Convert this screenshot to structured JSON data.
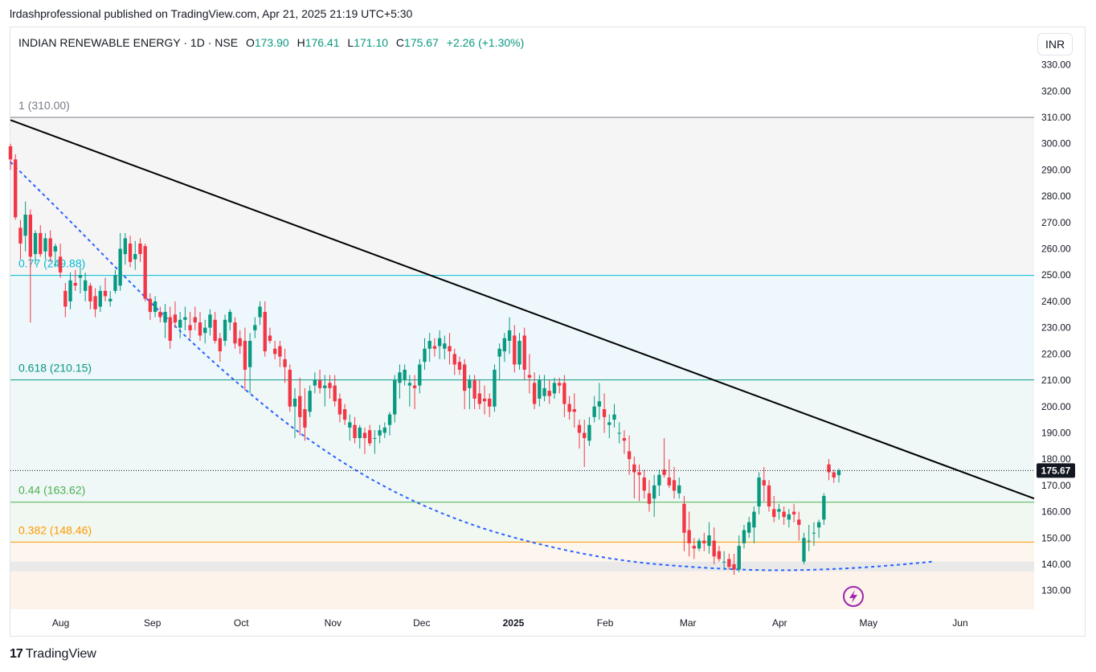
{
  "header": {
    "published_text": "lrdashprofessional published on TradingView.com, Apr 21, 2025 21:19 UTC+5:30"
  },
  "legend": {
    "symbol": "INDIAN RENEWABLE ENERGY · 1D · NSE",
    "open_label": "O",
    "open": "173.90",
    "high_label": "H",
    "high": "176.41",
    "low_label": "L",
    "low": "171.10",
    "close_label": "C",
    "close": "175.67",
    "change": "+2.26 (+1.30%)"
  },
  "currency_button": "INR",
  "last_price_label": "175.67",
  "footer": {
    "brand": "TradingView",
    "logo_text": "17"
  },
  "colors": {
    "up": "#089981",
    "down": "#f23645",
    "trendline": "#000000",
    "curve": "#2962ff",
    "fib_0_77": "#00bcd4",
    "fib_0_618": "#089981",
    "fib_0_44": "#4caf50",
    "fib_0_382": "#ff9800",
    "fib_1": "#787b86"
  },
  "chart_data": {
    "type": "candlestick",
    "title": "INDIAN RENEWABLE ENERGY · 1D · NSE",
    "y_range": [
      122,
      335
    ],
    "y_ticks": [
      "330.00",
      "320.00",
      "310.00",
      "300.00",
      "290.00",
      "280.00",
      "270.00",
      "260.00",
      "250.00",
      "240.00",
      "230.00",
      "220.00",
      "210.00",
      "200.00",
      "190.00",
      "180.00",
      "170.00",
      "160.00",
      "150.00",
      "140.00",
      "130.00"
    ],
    "x_ticks": [
      "Aug",
      "Sep",
      "Oct",
      "Nov",
      "Dec",
      "2025",
      "Feb",
      "Mar",
      "Apr",
      "May",
      "Jun"
    ],
    "x_range": [
      "2024-07-15",
      "2025-06-26"
    ],
    "fib_levels": [
      {
        "ratio": "1",
        "price": 310.0,
        "label": "1 (310.00)"
      },
      {
        "ratio": "0.77",
        "price": 249.88,
        "label": "0.77 (249.88)"
      },
      {
        "ratio": "0.618",
        "price": 210.15,
        "label": "0.618 (210.15)"
      },
      {
        "ratio": "0.44",
        "price": 163.62,
        "label": "0.44 (163.62)"
      },
      {
        "ratio": "0.382",
        "price": 148.46,
        "label": "0.382 (148.46)"
      },
      {
        "ratio": "0",
        "price": 137.3,
        "label": ""
      }
    ],
    "trendline": {
      "from": {
        "date": "2024-07-15",
        "price": 309
      },
      "to": {
        "date": "2025-06-26",
        "price": 165
      }
    },
    "curve": [
      [
        0.0,
        293
      ],
      [
        0.06,
        270
      ],
      [
        0.13,
        242
      ],
      [
        0.2,
        216
      ],
      [
        0.28,
        190
      ],
      [
        0.36,
        170
      ],
      [
        0.44,
        156
      ],
      [
        0.52,
        147
      ],
      [
        0.6,
        141
      ],
      [
        0.68,
        138.5
      ],
      [
        0.74,
        137.6
      ],
      [
        0.8,
        138
      ],
      [
        0.86,
        139.5
      ],
      [
        0.9,
        141
      ]
    ],
    "candles": [
      [
        0,
        299,
        300,
        290,
        294
      ],
      [
        1,
        294,
        296,
        271,
        272
      ],
      [
        2,
        268,
        271,
        256,
        262
      ],
      [
        3,
        265,
        278,
        259,
        273
      ],
      [
        4,
        273,
        275,
        232,
        257
      ],
      [
        5,
        258,
        267,
        254,
        266
      ],
      [
        6,
        266,
        269,
        257,
        258
      ],
      [
        7,
        259,
        266,
        256,
        264
      ],
      [
        8,
        264,
        267,
        255,
        257
      ],
      [
        9,
        259,
        262,
        253,
        261
      ],
      [
        10,
        257,
        262,
        249,
        251
      ],
      [
        11,
        244,
        247,
        234,
        238
      ],
      [
        12,
        240,
        251,
        237,
        248
      ],
      [
        13,
        247,
        252,
        244,
        246
      ],
      [
        14,
        249,
        253,
        243,
        250
      ],
      [
        15,
        244,
        251,
        240,
        248
      ],
      [
        16,
        246,
        247,
        237,
        240
      ],
      [
        17,
        242,
        245,
        234,
        237
      ],
      [
        18,
        238,
        246,
        236,
        244
      ],
      [
        19,
        244,
        249,
        240,
        242
      ],
      [
        20,
        240,
        244,
        238,
        241
      ],
      [
        21,
        244,
        252,
        243,
        250
      ],
      [
        22,
        246,
        266,
        244,
        260
      ],
      [
        23,
        258,
        266,
        254,
        264
      ],
      [
        24,
        262,
        265,
        253,
        255
      ],
      [
        25,
        256,
        263,
        252,
        258
      ],
      [
        26,
        262,
        264,
        255,
        258
      ],
      [
        27,
        261,
        262,
        240,
        241
      ],
      [
        28,
        241,
        243,
        233,
        236
      ],
      [
        29,
        236,
        242,
        234,
        240
      ],
      [
        30,
        236,
        238,
        232,
        234
      ],
      [
        31,
        232,
        239,
        226,
        236
      ],
      [
        32,
        234,
        238,
        222,
        225
      ],
      [
        33,
        235,
        240,
        230,
        232
      ],
      [
        34,
        230,
        236,
        226,
        233
      ],
      [
        35,
        233,
        238,
        229,
        234
      ],
      [
        36,
        231,
        236,
        226,
        229
      ],
      [
        37,
        234,
        238,
        229,
        232
      ],
      [
        38,
        232,
        236,
        225,
        227
      ],
      [
        39,
        228,
        233,
        224,
        230
      ],
      [
        40,
        230,
        237,
        227,
        235
      ],
      [
        41,
        233,
        236,
        224,
        225
      ],
      [
        42,
        226,
        228,
        217,
        221
      ],
      [
        43,
        225,
        235,
        223,
        233
      ],
      [
        44,
        232,
        237,
        229,
        236
      ],
      [
        45,
        232,
        234,
        222,
        224
      ],
      [
        46,
        226,
        229,
        220,
        223
      ],
      [
        47,
        225,
        230,
        206,
        214
      ],
      [
        48,
        215,
        228,
        205,
        225
      ],
      [
        49,
        229,
        234,
        226,
        231
      ],
      [
        50,
        234,
        240,
        231,
        238
      ],
      [
        51,
        236,
        240,
        219,
        221
      ],
      [
        52,
        227,
        230,
        224,
        225
      ],
      [
        53,
        222,
        225,
        218,
        220
      ],
      [
        54,
        223,
        225,
        215,
        219
      ],
      [
        55,
        218,
        222,
        209,
        215
      ],
      [
        56,
        214,
        216,
        198,
        200
      ],
      [
        57,
        200,
        207,
        188,
        203
      ],
      [
        58,
        204,
        211,
        189,
        196
      ],
      [
        59,
        199,
        207,
        187,
        192
      ],
      [
        60,
        198,
        208,
        196,
        206
      ],
      [
        61,
        208,
        213,
        205,
        210
      ],
      [
        62,
        210,
        214,
        205,
        207
      ],
      [
        63,
        207,
        212,
        200,
        208
      ],
      [
        64,
        209,
        212,
        203,
        207
      ],
      [
        65,
        208,
        212,
        200,
        202
      ],
      [
        66,
        203,
        205,
        194,
        197
      ],
      [
        67,
        199,
        201,
        193,
        195
      ],
      [
        68,
        192,
        197,
        187,
        194
      ],
      [
        69,
        193,
        196,
        186,
        188
      ],
      [
        70,
        188,
        193,
        184,
        192
      ],
      [
        71,
        190,
        192,
        182,
        188
      ],
      [
        72,
        191,
        193,
        185,
        186
      ],
      [
        73,
        188,
        191,
        182,
        188
      ],
      [
        74,
        189,
        193,
        186,
        191
      ],
      [
        75,
        190,
        194,
        188,
        192
      ],
      [
        76,
        193,
        198,
        189,
        197
      ],
      [
        77,
        197,
        212,
        194,
        210
      ],
      [
        78,
        209,
        216,
        203,
        213
      ],
      [
        79,
        210,
        216,
        208,
        214
      ],
      [
        80,
        208,
        212,
        200,
        209
      ],
      [
        81,
        208,
        212,
        199,
        207
      ],
      [
        82,
        208,
        218,
        205,
        216
      ],
      [
        83,
        217,
        226,
        214,
        222
      ],
      [
        84,
        222,
        228,
        217,
        225
      ],
      [
        85,
        223,
        226,
        219,
        222
      ],
      [
        86,
        223,
        229,
        218,
        226
      ],
      [
        87,
        222,
        227,
        218,
        224
      ],
      [
        88,
        223,
        228,
        216,
        221
      ],
      [
        89,
        220,
        222,
        212,
        216
      ],
      [
        90,
        217,
        219,
        212,
        214
      ],
      [
        91,
        216,
        218,
        199,
        206
      ],
      [
        92,
        207,
        212,
        199,
        210
      ],
      [
        93,
        210,
        212,
        199,
        203
      ],
      [
        94,
        205,
        210,
        199,
        201
      ],
      [
        95,
        203,
        208,
        197,
        202
      ],
      [
        96,
        203,
        205,
        196,
        200
      ],
      [
        97,
        200,
        216,
        198,
        214
      ],
      [
        98,
        219,
        224,
        210,
        222
      ],
      [
        99,
        221,
        228,
        217,
        226
      ],
      [
        100,
        225,
        234,
        220,
        229
      ],
      [
        101,
        227,
        231,
        213,
        216
      ],
      [
        102,
        216,
        228,
        214,
        225
      ],
      [
        103,
        227,
        230,
        210,
        214
      ],
      [
        104,
        212,
        220,
        205,
        211
      ],
      [
        105,
        209,
        213,
        199,
        201
      ],
      [
        106,
        203,
        212,
        200,
        210
      ],
      [
        107,
        204,
        212,
        202,
        207
      ],
      [
        108,
        206,
        210,
        201,
        204
      ],
      [
        109,
        205,
        211,
        203,
        209
      ],
      [
        110,
        209,
        211,
        205,
        208
      ],
      [
        111,
        209,
        212,
        196,
        201
      ],
      [
        112,
        201,
        204,
        195,
        198
      ],
      [
        113,
        199,
        205,
        192,
        198
      ],
      [
        114,
        193,
        195,
        184,
        190
      ],
      [
        115,
        190,
        195,
        177,
        188
      ],
      [
        116,
        187,
        196,
        185,
        193
      ],
      [
        117,
        196,
        204,
        194,
        200
      ],
      [
        118,
        200,
        209,
        195,
        202
      ],
      [
        119,
        199,
        205,
        190,
        196
      ],
      [
        120,
        193,
        197,
        188,
        194
      ],
      [
        121,
        195,
        201,
        192,
        197
      ],
      [
        122,
        190,
        194,
        186,
        190
      ],
      [
        123,
        188,
        191,
        182,
        187
      ],
      [
        124,
        183,
        189,
        174,
        180
      ],
      [
        125,
        178,
        181,
        165,
        175
      ],
      [
        126,
        175,
        178,
        164,
        174
      ],
      [
        127,
        173,
        176,
        165,
        168
      ],
      [
        128,
        167,
        172,
        160,
        163
      ],
      [
        129,
        165,
        174,
        158,
        170
      ],
      [
        130,
        170,
        176,
        166,
        174
      ],
      [
        131,
        176,
        188,
        173,
        174
      ],
      [
        132,
        173,
        180,
        169,
        170
      ],
      [
        133,
        172,
        177,
        165,
        168
      ],
      [
        134,
        167,
        173,
        165,
        170
      ],
      [
        135,
        163,
        166,
        145,
        152
      ],
      [
        136,
        153,
        160,
        143,
        148
      ],
      [
        137,
        147,
        150,
        142,
        146
      ],
      [
        138,
        146,
        150,
        145,
        149
      ],
      [
        139,
        149,
        152,
        145,
        148
      ],
      [
        140,
        147,
        156,
        144,
        151
      ],
      [
        141,
        149,
        154,
        140,
        143
      ],
      [
        142,
        145,
        147,
        141,
        142
      ],
      [
        143,
        141,
        145,
        138,
        141
      ],
      [
        144,
        142,
        144,
        138,
        139
      ],
      [
        145,
        140,
        144,
        136,
        138
      ],
      [
        146,
        138,
        151,
        137,
        147
      ],
      [
        147,
        148,
        155,
        146,
        153
      ],
      [
        148,
        152,
        158,
        150,
        156
      ],
      [
        149,
        154,
        162,
        148,
        160
      ],
      [
        150,
        162,
        175,
        159,
        173
      ],
      [
        151,
        172,
        177,
        164,
        170
      ],
      [
        152,
        170,
        172,
        160,
        162
      ],
      [
        153,
        161,
        166,
        156,
        158
      ],
      [
        154,
        160,
        163,
        157,
        161
      ],
      [
        155,
        160,
        162,
        155,
        158
      ],
      [
        156,
        157,
        161,
        154,
        159
      ],
      [
        157,
        160,
        163,
        156,
        159
      ],
      [
        158,
        157,
        160,
        149,
        155
      ],
      [
        159,
        141,
        152,
        140,
        150
      ],
      [
        160,
        149,
        155,
        145,
        149
      ],
      [
        161,
        152,
        156,
        147,
        152
      ],
      [
        162,
        154,
        157,
        150,
        156
      ],
      [
        163,
        157,
        167,
        155,
        166
      ],
      [
        164,
        178,
        180,
        172,
        175
      ],
      [
        165,
        175,
        176,
        171,
        173
      ],
      [
        166,
        173.9,
        176.41,
        171.1,
        175.67
      ]
    ],
    "candle_x_scale": {
      "first_date": "2024-07-15",
      "last_date": "2025-04-21"
    },
    "grid": false,
    "icon": "lightning-icon"
  }
}
